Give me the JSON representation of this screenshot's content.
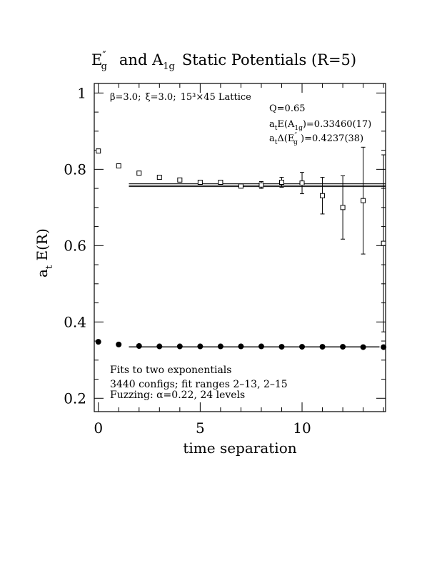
{
  "chart_data": {
    "type": "scatter",
    "title": {
      "part1": "E",
      "part1_sup": "″",
      "part1_sub": "g",
      "part2": "and A",
      "part2_sub": "1g",
      "part3": "Static Potentials (R=5)"
    },
    "xlabel": "time separation",
    "ylabel": {
      "main": "a",
      "sub": "t",
      "rest": " E(R)"
    },
    "xlim": [
      -0.2,
      14.1
    ],
    "ylim": [
      0.165,
      1.025
    ],
    "x_ticks": [
      0,
      5,
      10
    ],
    "y_ticks": [
      0.2,
      0.4,
      0.6,
      0.8,
      1
    ],
    "y_tick_labels": [
      "0.2",
      "0.4",
      "0.6",
      "0.8",
      "1"
    ],
    "x_tick_labels": [
      "0",
      "5",
      "10"
    ],
    "annotations": {
      "lattice": {
        "beta": "β=3.0;",
        "xi": "ξ=3.0;",
        "lattice": "15³×45 Lattice"
      },
      "q": "Q=0.65",
      "a1g": {
        "pre": "a",
        "pre_sub": "t",
        "mid": "E(A",
        "mid_sub": "1g",
        "post": ")=0.33460(17)"
      },
      "eg": {
        "pre": "a",
        "pre_sub": "t",
        "mid": "Δ(E",
        "mid_sup": "″",
        "mid_sub": "g",
        "post": " )=0.4237(38)"
      },
      "fits": "Fits to two exponentials",
      "configs": "3440 configs; fit ranges 2–13, 2–15",
      "fuzzing": "Fuzzing: α=0.22, 24 levels"
    },
    "series": [
      {
        "marker": "open-square",
        "points": [
          {
            "x": 0,
            "y": 0.848,
            "err": 0.003
          },
          {
            "x": 1,
            "y": 0.809,
            "err": 0.003
          },
          {
            "x": 2,
            "y": 0.79,
            "err": 0.003
          },
          {
            "x": 3,
            "y": 0.779,
            "err": 0.004
          },
          {
            "x": 4,
            "y": 0.772,
            "err": 0.004
          },
          {
            "x": 5,
            "y": 0.766,
            "err": 0.005
          },
          {
            "x": 6,
            "y": 0.766,
            "err": 0.006
          },
          {
            "x": 7,
            "y": 0.756,
            "err": 0.007
          },
          {
            "x": 8,
            "y": 0.759,
            "err": 0.009
          },
          {
            "x": 9,
            "y": 0.766,
            "err": 0.013
          },
          {
            "x": 10,
            "y": 0.764,
            "err": 0.028
          },
          {
            "x": 11,
            "y": 0.731,
            "err": 0.048
          },
          {
            "x": 12,
            "y": 0.7,
            "err": 0.083
          },
          {
            "x": 13,
            "y": 0.718,
            "err": 0.14
          },
          {
            "x": 14,
            "y": 0.606,
            "err": 0.232
          }
        ],
        "fit_band": {
          "x_range": [
            1.5,
            14.1
          ],
          "center": 0.7583,
          "lower": 0.7545,
          "upper": 0.7621
        }
      },
      {
        "marker": "filled-circle",
        "points": [
          {
            "x": 0,
            "y": 0.348
          },
          {
            "x": 1,
            "y": 0.341
          },
          {
            "x": 2,
            "y": 0.337
          },
          {
            "x": 3,
            "y": 0.336
          },
          {
            "x": 4,
            "y": 0.336
          },
          {
            "x": 5,
            "y": 0.336
          },
          {
            "x": 6,
            "y": 0.336
          },
          {
            "x": 7,
            "y": 0.336
          },
          {
            "x": 8,
            "y": 0.336
          },
          {
            "x": 9,
            "y": 0.335
          },
          {
            "x": 10,
            "y": 0.335
          },
          {
            "x": 11,
            "y": 0.335
          },
          {
            "x": 12,
            "y": 0.335
          },
          {
            "x": 13,
            "y": 0.334
          },
          {
            "x": 14,
            "y": 0.334
          }
        ],
        "fit_band": {
          "x_range": [
            1.5,
            13.8
          ],
          "center": 0.3346,
          "lower": 0.3344,
          "upper": 0.3348
        }
      }
    ]
  }
}
